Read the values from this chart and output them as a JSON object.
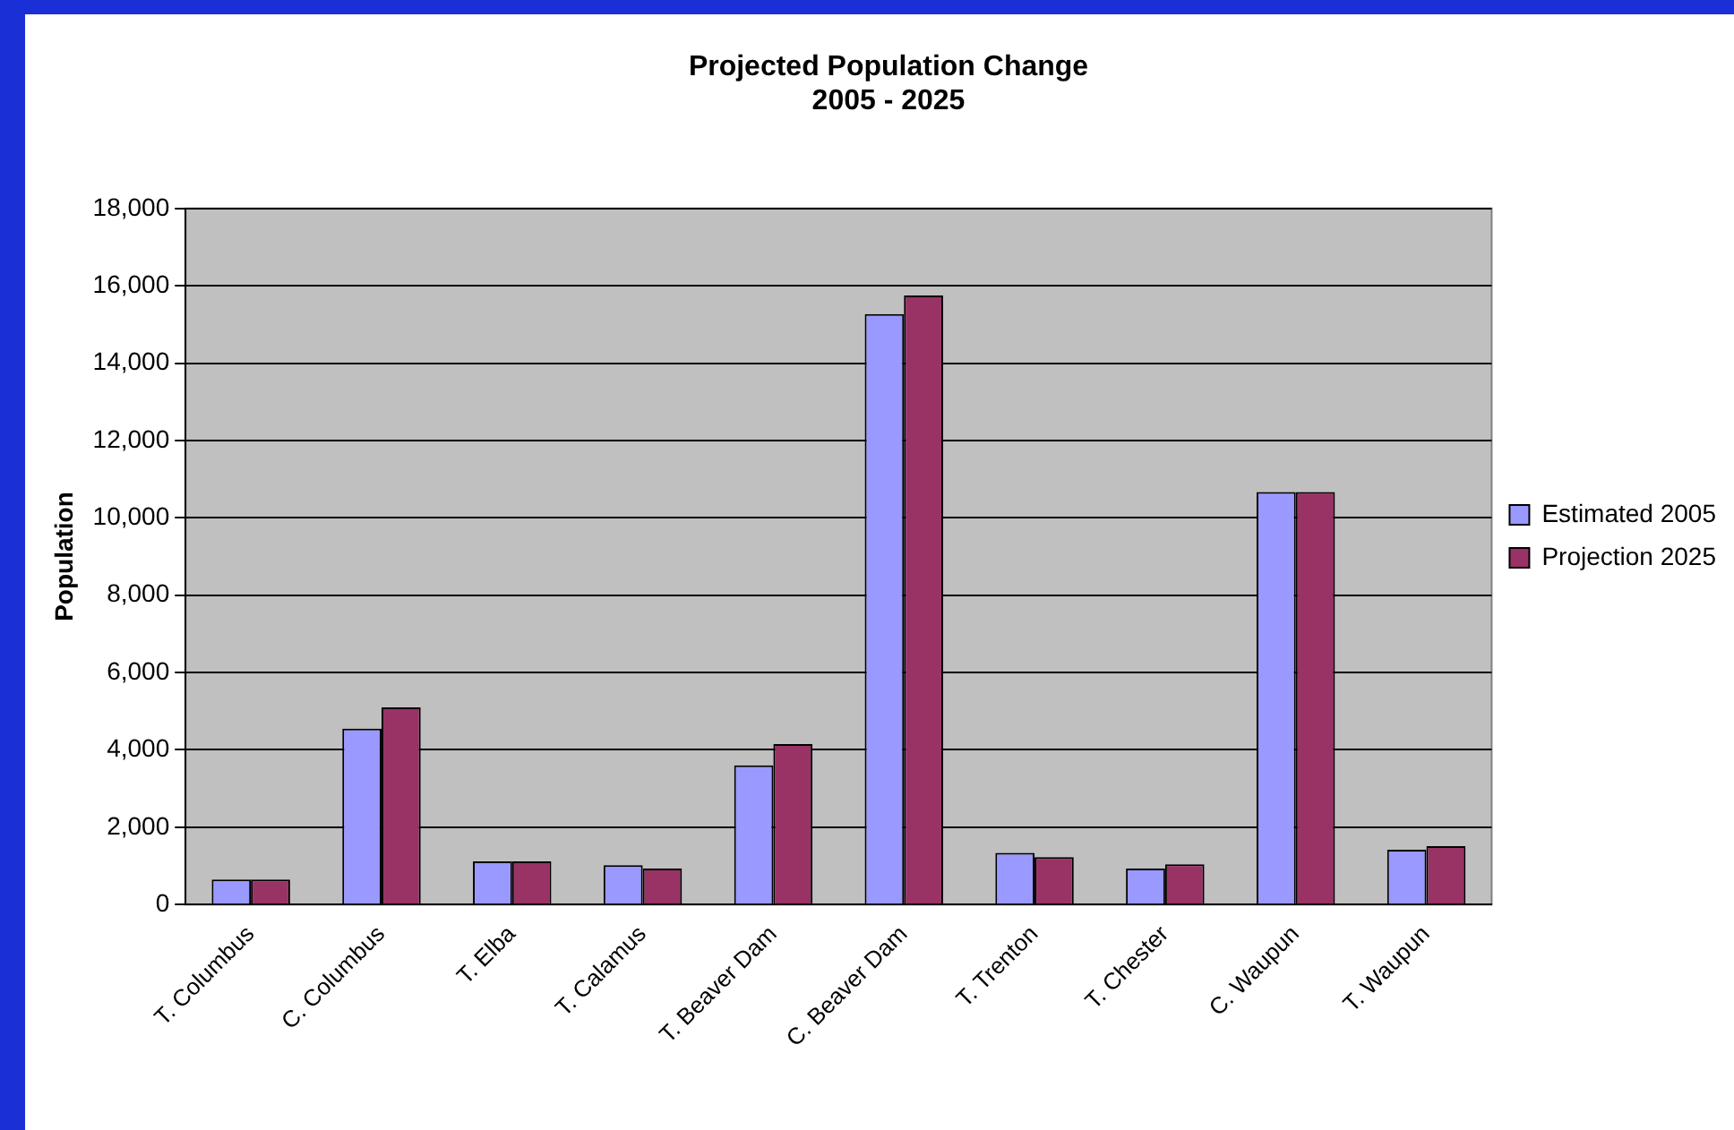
{
  "chart_data": {
    "type": "bar",
    "title": "Projected Population Change\n2005 - 2025",
    "ylabel": "Population",
    "categories": [
      "T. Columbus",
      "C. Columbus",
      "T. Elba",
      "T. Calamus",
      "T. Beaver Dam",
      "C. Beaver Dam",
      "T. Trenton",
      "T. Chester",
      "C. Waupun",
      "T. Waupun"
    ],
    "series": [
      {
        "name": "Estimated 2005",
        "color": "#9999ff",
        "values": [
          650,
          4550,
          1120,
          1020,
          3600,
          15270,
          1340,
          930,
          10670,
          1420
        ]
      },
      {
        "name": "Projection 2025",
        "color": "#993366",
        "values": [
          650,
          5100,
          1120,
          930,
          4150,
          15750,
          1230,
          1040,
          10670,
          1510
        ]
      }
    ],
    "ylim": [
      0,
      18000
    ],
    "yticks": [
      {
        "value": 0,
        "label": "0"
      },
      {
        "value": 2000,
        "label": "2,000"
      },
      {
        "value": 4000,
        "label": "4,000"
      },
      {
        "value": 6000,
        "label": "6,000"
      },
      {
        "value": 8000,
        "label": "8,000"
      },
      {
        "value": 10000,
        "label": "10,000"
      },
      {
        "value": 12000,
        "label": "12,000"
      },
      {
        "value": 14000,
        "label": "14,000"
      },
      {
        "value": 16000,
        "label": "16,000"
      },
      {
        "value": 18000,
        "label": "18,000"
      }
    ],
    "grid": "y",
    "legend": "right"
  }
}
